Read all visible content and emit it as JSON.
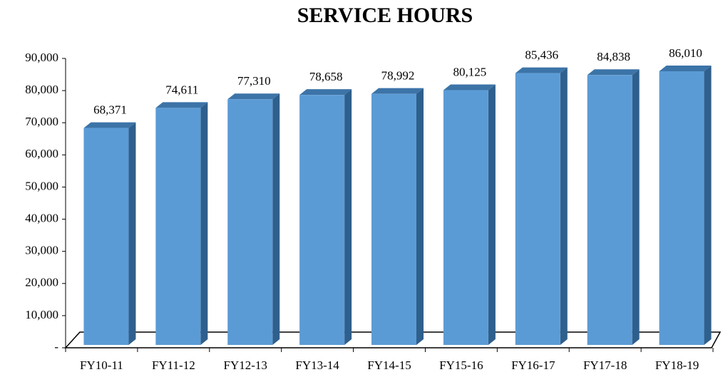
{
  "chart_data": {
    "type": "bar3d",
    "title": "SERVICE HOURS",
    "categories": [
      "FY10-11",
      "FY11-12",
      "FY12-13",
      "FY13-14",
      "FY14-15",
      "FY15-16",
      "FY16-17",
      "FY17-18",
      "FY18-19"
    ],
    "values": [
      68371,
      74611,
      77310,
      78658,
      78992,
      80125,
      85436,
      84838,
      86010
    ],
    "value_labels": [
      "68,371",
      "74,611",
      "77,310",
      "78,658",
      "78,992",
      "80,125",
      "85,436",
      "84,838",
      "86,010"
    ],
    "color": "#5b9bd5",
    "ylim": [
      0,
      90000
    ],
    "yticks": [
      {
        "value": 0,
        "label": "-"
      },
      {
        "value": 10000,
        "label": "10,000"
      },
      {
        "value": 20000,
        "label": "20,000"
      },
      {
        "value": 30000,
        "label": "30,000"
      },
      {
        "value": 40000,
        "label": "40,000"
      },
      {
        "value": 50000,
        "label": "50,000"
      },
      {
        "value": 60000,
        "label": "60,000"
      },
      {
        "value": 70000,
        "label": "70,000"
      },
      {
        "value": 80000,
        "label": "80,000"
      },
      {
        "value": 90000,
        "label": "90,000"
      }
    ],
    "grid": false
  }
}
